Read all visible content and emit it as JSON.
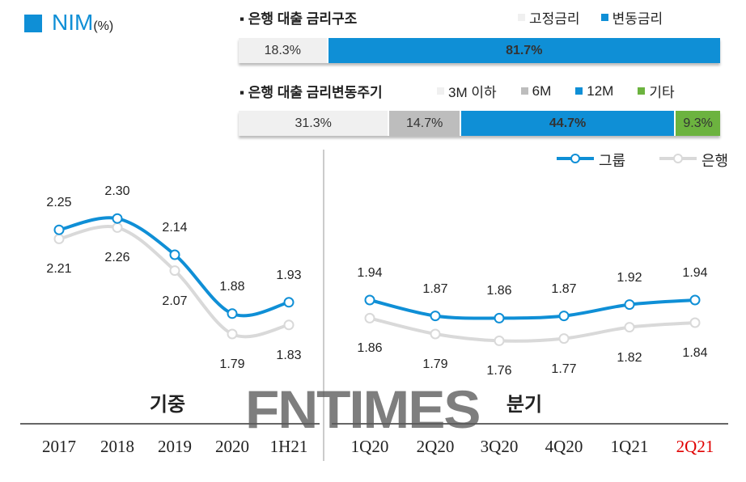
{
  "title": {
    "main": "NIM",
    "unit": "(%)"
  },
  "structure": {
    "heading": "은행 대출 금리구조",
    "legend": [
      {
        "label": "고정금리",
        "color": "#f0f0f0"
      },
      {
        "label": "변동금리",
        "color": "#0f8fd6"
      }
    ],
    "segments": [
      {
        "label": "18.3%",
        "value": 18.3,
        "color": "#f0f0f0"
      },
      {
        "label": "81.7%",
        "value": 81.7,
        "color": "#0f8fd6"
      }
    ]
  },
  "cycle": {
    "heading": "은행 대출 금리변동주기",
    "legend": [
      {
        "label": "3M 이하",
        "color": "#f0f0f0"
      },
      {
        "label": "6M",
        "color": "#bdbdbd"
      },
      {
        "label": "12M",
        "color": "#0f8fd6"
      },
      {
        "label": "기타",
        "color": "#6cb33f"
      }
    ],
    "segments": [
      {
        "label": "31.3%",
        "value": 31.3,
        "color": "#f0f0f0"
      },
      {
        "label": "14.7%",
        "value": 14.7,
        "color": "#bdbdbd"
      },
      {
        "label": "44.7%",
        "value": 44.7,
        "color": "#0f8fd6"
      },
      {
        "label": "9.3%",
        "value": 9.3,
        "color": "#6cb33f"
      }
    ]
  },
  "chart_data": {
    "type": "line",
    "legend_position": "top-right",
    "grid": false,
    "panels": [
      {
        "label": "기중",
        "categories": [
          "2017",
          "2018",
          "2019",
          "2020",
          "1H21"
        ],
        "series": [
          {
            "name": "그룹",
            "color": "#0f8fd6",
            "values": [
              2.25,
              2.3,
              2.14,
              1.88,
              1.93
            ]
          },
          {
            "name": "은행",
            "color": "#d9d9d9",
            "values": [
              2.21,
              2.26,
              2.07,
              1.79,
              1.83
            ]
          }
        ]
      },
      {
        "label": "분기",
        "categories": [
          "1Q20",
          "2Q20",
          "3Q20",
          "4Q20",
          "1Q21",
          "2Q21"
        ],
        "highlight_category": "2Q21",
        "highlight_color": "#e00000",
        "series": [
          {
            "name": "그룹",
            "color": "#0f8fd6",
            "values": [
              1.94,
              1.87,
              1.86,
              1.87,
              1.92,
              1.94
            ]
          },
          {
            "name": "은행",
            "color": "#d9d9d9",
            "values": [
              1.86,
              1.79,
              1.76,
              1.77,
              1.82,
              1.84
            ]
          }
        ]
      }
    ]
  },
  "watermark": "FNTIMES"
}
